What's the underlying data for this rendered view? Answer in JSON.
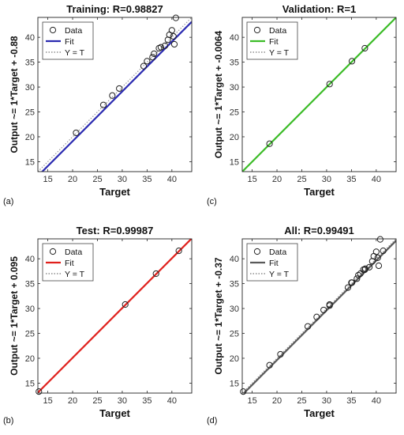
{
  "panel_labels": [
    "(a)",
    "(c)",
    "(b)",
    "(d)"
  ],
  "chart_data": [
    {
      "type": "scatter",
      "title": "Training: R=0.98827",
      "xlabel": "Target",
      "ylabel": "Output ~= 1*Target + -0.88",
      "xlim": [
        13,
        44
      ],
      "ylim": [
        13,
        44
      ],
      "xticks": [
        15,
        20,
        25,
        30,
        35,
        40
      ],
      "yticks": [
        15,
        20,
        25,
        30,
        35,
        40
      ],
      "legend_position": "top-left",
      "legend": [
        "Data",
        "Fit",
        "Y = T"
      ],
      "fit_color": "#2a2ab0",
      "fit": {
        "slope": 1.0,
        "intercept": -0.88
      },
      "points": [
        [
          20.7,
          20.8
        ],
        [
          26.2,
          26.4
        ],
        [
          28.0,
          28.3
        ],
        [
          29.4,
          29.7
        ],
        [
          34.3,
          34.2
        ],
        [
          35.0,
          35.2
        ],
        [
          36.1,
          36.0
        ],
        [
          36.4,
          36.7
        ],
        [
          37.4,
          37.8
        ],
        [
          37.8,
          38.0
        ],
        [
          38.6,
          38.3
        ],
        [
          39.2,
          39.5
        ],
        [
          39.5,
          40.5
        ],
        [
          40.0,
          41.4
        ],
        [
          40.3,
          40.2
        ],
        [
          40.5,
          38.6
        ],
        [
          40.8,
          43.9
        ]
      ]
    },
    {
      "type": "scatter",
      "title": "Validation: R=1",
      "xlabel": "Target",
      "ylabel": "Output ~= 1*Target + -0.0064",
      "xlim": [
        13,
        44
      ],
      "ylim": [
        13,
        44
      ],
      "xticks": [
        15,
        20,
        25,
        30,
        35,
        40
      ],
      "yticks": [
        15,
        20,
        25,
        30,
        35,
        40
      ],
      "legend_position": "top-left",
      "legend": [
        "Data",
        "Fit",
        "Y = T"
      ],
      "fit_color": "#3cbc28",
      "fit": {
        "slope": 1.0,
        "intercept": -0.0064
      },
      "points": [
        [
          18.5,
          18.6
        ],
        [
          30.6,
          30.6
        ],
        [
          35.1,
          35.2
        ],
        [
          37.7,
          37.8
        ]
      ]
    },
    {
      "type": "scatter",
      "title": "Test: R=0.99987",
      "xlabel": "Target",
      "ylabel": "Output ~= 1*Target + 0.095",
      "xlim": [
        13,
        44
      ],
      "ylim": [
        13,
        44
      ],
      "xticks": [
        15,
        20,
        25,
        30,
        35,
        40
      ],
      "yticks": [
        15,
        20,
        25,
        30,
        35,
        40
      ],
      "legend_position": "top-left",
      "legend": [
        "Data",
        "Fit",
        "Y = T"
      ],
      "fit_color": "#e0201c",
      "fit": {
        "slope": 1.0,
        "intercept": 0.095
      },
      "points": [
        [
          13.2,
          13.3
        ],
        [
          30.6,
          30.8
        ],
        [
          36.8,
          37.0
        ],
        [
          41.4,
          41.6
        ]
      ]
    },
    {
      "type": "scatter",
      "title": "All: R=0.99491",
      "xlabel": "Target",
      "ylabel": "Output ~= 1*Target + -0.37",
      "xlim": [
        13,
        44
      ],
      "ylim": [
        13,
        44
      ],
      "xticks": [
        15,
        20,
        25,
        30,
        35,
        40
      ],
      "yticks": [
        15,
        20,
        25,
        30,
        35,
        40
      ],
      "legend_position": "top-left",
      "legend": [
        "Data",
        "Fit",
        "Y = T"
      ],
      "fit_color": "#5a5a5a",
      "fit": {
        "slope": 1.0,
        "intercept": -0.37
      },
      "points": [
        [
          13.2,
          13.3
        ],
        [
          18.5,
          18.6
        ],
        [
          20.7,
          20.8
        ],
        [
          26.2,
          26.4
        ],
        [
          28.0,
          28.3
        ],
        [
          29.4,
          29.7
        ],
        [
          30.6,
          30.6
        ],
        [
          30.6,
          30.8
        ],
        [
          34.3,
          34.2
        ],
        [
          35.0,
          35.2
        ],
        [
          35.1,
          35.2
        ],
        [
          36.1,
          36.0
        ],
        [
          36.4,
          36.7
        ],
        [
          36.8,
          37.0
        ],
        [
          37.4,
          37.8
        ],
        [
          37.7,
          37.8
        ],
        [
          37.8,
          38.0
        ],
        [
          38.6,
          38.3
        ],
        [
          39.2,
          39.5
        ],
        [
          39.5,
          40.5
        ],
        [
          40.0,
          41.4
        ],
        [
          40.3,
          40.2
        ],
        [
          40.5,
          38.6
        ],
        [
          40.8,
          43.9
        ],
        [
          41.4,
          41.6
        ]
      ]
    }
  ]
}
